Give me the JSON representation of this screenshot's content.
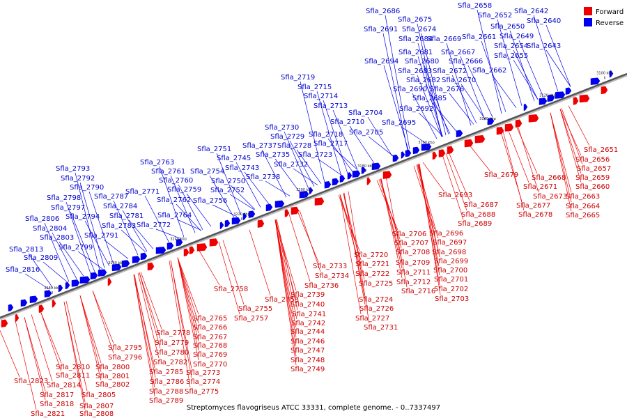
{
  "legend": [
    {
      "label": "Forward",
      "color": "#ee0000"
    },
    {
      "label": "Reverse",
      "color": "#0000ee"
    }
  ],
  "caption": "Streptomyces flavogriseus ATCC 33331, complete genome. - 0..7337497",
  "ticks": [
    "3100 kbp",
    "3120 kbp",
    "3140 kbp",
    "3160 kbp",
    "3180 kbp",
    "3200 kbp",
    "3220 kbp",
    "3240 kbp",
    "3260 kbp",
    "3280 kbp"
  ],
  "reverse_labels": [
    "Sfla_2686",
    "Sfla_2658",
    "Sfla_2675",
    "Sfla_2652",
    "Sfla_2642",
    "Sfla_2691",
    "Sfla_2674",
    "Sfla_2640",
    "Sfla_2650",
    "Sfla_2684",
    "Sfla_2669",
    "Sfla_2661",
    "Sfla_2649",
    "Sfla_2654",
    "Sfla_2643",
    "Sfla_2681",
    "Sfla_2667",
    "Sfla_2655",
    "Sfla_2694",
    "Sfla_2680",
    "Sfla_2666",
    "Sfla_2683",
    "Sfla_2672",
    "Sfla_2662",
    "Sfla_2719",
    "Sfla_2682",
    "Sfla_2670",
    "Sfla_2715",
    "Sfla_2690",
    "Sfla_2676",
    "Sfla_2714",
    "Sfla_2685",
    "Sfla_2713",
    "Sfla_2692",
    "Sfla_2704",
    "Sfla_2710",
    "Sfla_2695",
    "Sfla_2730",
    "Sfla_2718",
    "Sfla_2705",
    "Sfla_2729",
    "Sfla_2717",
    "Sfla_2751",
    "Sfla_2737",
    "Sfla_2728",
    "Sfla_2723",
    "Sfla_2745",
    "Sfla_2735",
    "Sfla_2763",
    "Sfla_2743",
    "Sfla_2732",
    "Sfla_2761",
    "Sfla_2754",
    "Sfla_2738",
    "Sfla_2793",
    "Sfla_2760",
    "Sfla_2750",
    "Sfla_2792",
    "Sfla_2759",
    "Sfla_2752",
    "Sfla_2790",
    "Sfla_2771",
    "Sfla_2787",
    "Sfla_2762",
    "Sfla_2756",
    "Sfla_2798",
    "Sfla_2784",
    "Sfla_2797",
    "Sfla_2764",
    "Sfla_2794",
    "Sfla_2781",
    "Sfla_2806",
    "Sfla_2783",
    "Sfla_2772",
    "Sfla_2804",
    "Sfla_2791",
    "Sfla_2803",
    "Sfla_2799",
    "Sfla_2813",
    "Sfla_2809",
    "Sfla_2816"
  ],
  "forward_labels": [
    "Sfla_2651",
    "Sfla_2656",
    "Sfla_2657",
    "Sfla_2679",
    "Sfla_2668",
    "Sfla_2659",
    "Sfla_2671",
    "Sfla_2660",
    "Sfla_2693",
    "Sfla_2673",
    "Sfla_2663",
    "Sfla_2687",
    "Sfla_2677",
    "Sfla_2664",
    "Sfla_2688",
    "Sfla_2678",
    "Sfla_2665",
    "Sfla_2689",
    "Sfla_2706",
    "Sfla_2696",
    "Sfla_2707",
    "Sfla_2697",
    "Sfla_2708",
    "Sfla_2698",
    "Sfla_2720",
    "Sfla_2709",
    "Sfla_2699",
    "Sfla_2721",
    "Sfla_2733",
    "Sfla_2711",
    "Sfla_2700",
    "Sfla_2722",
    "Sfla_2734",
    "Sfla_2712",
    "Sfla_2701",
    "Sfla_2725",
    "Sfla_2736",
    "Sfla_2716",
    "Sfla_2702",
    "Sfla_2758",
    "Sfla_2739",
    "Sfla_2703",
    "Sfla_2753",
    "Sfla_2724",
    "Sfla_2740",
    "Sfla_2755",
    "Sfla_2726",
    "Sfla_2741",
    "Sfla_2757",
    "Sfla_2727",
    "Sfla_2742",
    "Sfla_2765",
    "Sfla_2731",
    "Sfla_2744",
    "Sfla_2766",
    "Sfla_2778",
    "Sfla_2767",
    "Sfla_2746",
    "Sfla_2779",
    "Sfla_2768",
    "Sfla_2747",
    "Sfla_2795",
    "Sfla_2780",
    "Sfla_2769",
    "Sfla_2748",
    "Sfla_2796",
    "Sfla_2782",
    "Sfla_2770",
    "Sfla_2749",
    "Sfla_2810",
    "Sfla_2800",
    "Sfla_2785",
    "Sfla_2773",
    "Sfla_2823",
    "Sfla_2811",
    "Sfla_2801",
    "Sfla_2786",
    "Sfla_2774",
    "Sfla_2814",
    "Sfla_2802",
    "Sfla_2788",
    "Sfla_2775",
    "Sfla_2817",
    "Sfla_2805",
    "Sfla_2789",
    "Sfla_2818",
    "Sfla_2807",
    "Sfla_2821",
    "Sfla_2808"
  ]
}
